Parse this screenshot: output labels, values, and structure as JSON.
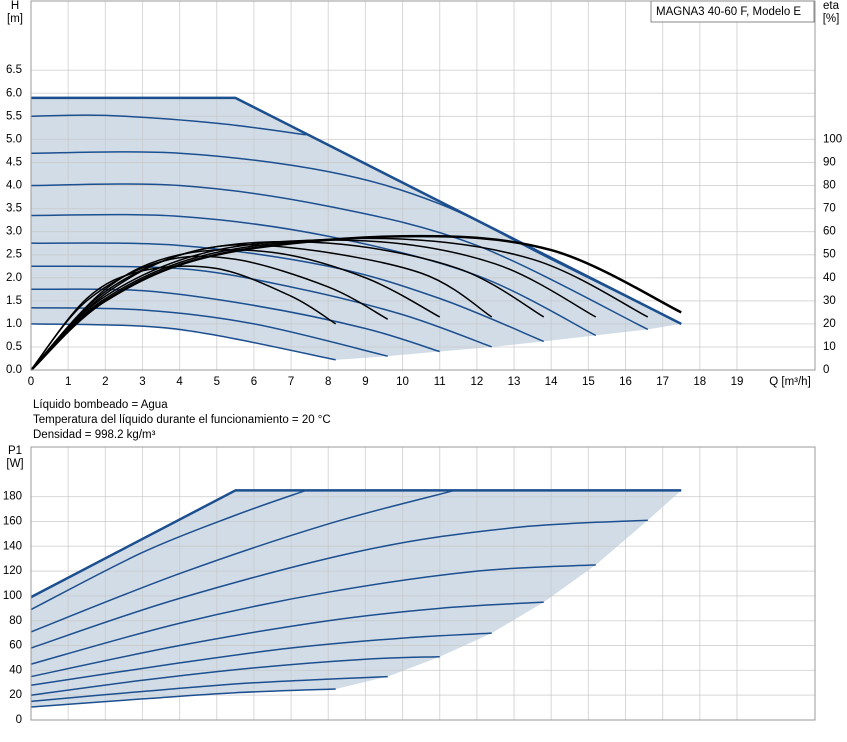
{
  "chart_data": [
    {
      "type": "line",
      "model": "MAGNA3 40-60 F, Modelo E",
      "ylabel": "H",
      "yunit": "[m]",
      "y2label": "eta",
      "y2unit": "[%]",
      "xlabel": "Q [m³/h]",
      "annotations": [
        "Líquido bombeado = Agua",
        "Temperatura del líquido durante el funcionamiento = 20 °C",
        "Densidad = 998.2 kg/m³"
      ],
      "xlim": [
        0,
        21.1
      ],
      "ylim": [
        0,
        8
      ],
      "y2lim": [
        0,
        160
      ],
      "xticks": [
        0,
        1,
        2,
        3,
        4,
        5,
        6,
        7,
        8,
        9,
        10,
        11,
        12,
        13,
        14,
        15,
        16,
        17,
        18,
        19
      ],
      "yticks": [
        {
          "value": 0,
          "label": "0.0"
        },
        {
          "value": 0.5,
          "label": "0.5"
        },
        {
          "value": 1,
          "label": "1.0"
        },
        {
          "value": 1.5,
          "label": "1.5"
        },
        {
          "value": 2,
          "label": "2.0"
        },
        {
          "value": 2.5,
          "label": "2.5"
        },
        {
          "value": 3,
          "label": "3.0"
        },
        {
          "value": 3.5,
          "label": "3.5"
        },
        {
          "value": 4,
          "label": "4.0"
        },
        {
          "value": 4.5,
          "label": "4.5"
        },
        {
          "value": 5,
          "label": "5.0"
        },
        {
          "value": 5.5,
          "label": "5.5"
        },
        {
          "value": 6,
          "label": "6.0"
        },
        {
          "value": 6.5,
          "label": "6.5"
        }
      ],
      "y2ticks": [
        0,
        10,
        20,
        30,
        40,
        50,
        60,
        70,
        80,
        90,
        100
      ],
      "grid": true,
      "fill_color": "#c9d6e3",
      "series": [
        {
          "color": "#1c4f8f",
          "smooth": false,
          "width": 2.5,
          "x": [
            0,
            5.5,
            17.5
          ],
          "values": [
            5.9,
            5.9,
            1.0
          ]
        },
        {
          "color": "#1c4f8f",
          "x": [
            0,
            2,
            5,
            7.4
          ],
          "values": [
            5.5,
            5.52,
            5.35,
            5.1
          ]
        },
        {
          "color": "#1c4f8f",
          "x": [
            0,
            4,
            8,
            11,
            14,
            17.5
          ],
          "values": [
            4.7,
            4.7,
            4.3,
            3.6,
            2.4,
            1.0
          ]
        },
        {
          "color": "#1c4f8f",
          "x": [
            0,
            4,
            8,
            12,
            16.6
          ],
          "values": [
            4.0,
            4.0,
            3.55,
            2.7,
            0.88
          ]
        },
        {
          "color": "#1c4f8f",
          "x": [
            0,
            4,
            8,
            12,
            15.2
          ],
          "values": [
            3.35,
            3.33,
            2.9,
            2.05,
            0.75
          ]
        },
        {
          "color": "#1c4f8f",
          "x": [
            0,
            4,
            8,
            11,
            13.8
          ],
          "values": [
            2.75,
            2.7,
            2.25,
            1.55,
            0.62
          ]
        },
        {
          "color": "#1c4f8f",
          "x": [
            0,
            4,
            7,
            10,
            12.4
          ],
          "values": [
            2.25,
            2.2,
            1.8,
            1.2,
            0.5
          ]
        },
        {
          "color": "#1c4f8f",
          "x": [
            0,
            3,
            6,
            9,
            11
          ],
          "values": [
            1.75,
            1.72,
            1.4,
            0.9,
            0.4
          ]
        },
        {
          "color": "#1c4f8f",
          "x": [
            0,
            3,
            6,
            9.6
          ],
          "values": [
            1.35,
            1.3,
            1.0,
            0.3
          ]
        },
        {
          "color": "#1c4f8f",
          "x": [
            0,
            3,
            5,
            8.2
          ],
          "values": [
            1.0,
            0.95,
            0.75,
            0.22
          ]
        },
        {
          "color": "#000000",
          "axis": "y2",
          "width": 2.5,
          "x": [
            0,
            2,
            5,
            10,
            14,
            17.5
          ],
          "values": [
            0,
            30,
            50,
            58,
            52,
            25
          ]
        },
        {
          "color": "#000000",
          "axis": "y2",
          "x": [
            0,
            2,
            5,
            9.5,
            13.5,
            16.6
          ],
          "values": [
            0,
            31,
            51,
            57,
            48,
            23
          ]
        },
        {
          "color": "#000000",
          "axis": "y2",
          "x": [
            0,
            2,
            5,
            9,
            12.5,
            15.2
          ],
          "values": [
            0,
            32,
            52,
            56,
            46,
            23
          ]
        },
        {
          "color": "#000000",
          "axis": "y2",
          "x": [
            0,
            2,
            4.5,
            8,
            11.5,
            13.8
          ],
          "values": [
            0,
            33,
            52,
            55,
            44,
            23
          ]
        },
        {
          "color": "#000000",
          "axis": "y2",
          "x": [
            0,
            2,
            4.5,
            7,
            10.5,
            12.4
          ],
          "values": [
            0,
            34,
            52,
            53,
            42,
            23
          ]
        },
        {
          "color": "#000000",
          "axis": "y2",
          "x": [
            0,
            2,
            4,
            6.5,
            9,
            11
          ],
          "values": [
            0,
            35,
            50,
            51,
            40,
            23
          ]
        },
        {
          "color": "#000000",
          "axis": "y2",
          "x": [
            0,
            1.5,
            3.5,
            5.5,
            8,
            9.6
          ],
          "values": [
            0,
            30,
            47,
            48,
            36,
            22
          ]
        },
        {
          "color": "#000000",
          "axis": "y2",
          "x": [
            0,
            1.5,
            3,
            5,
            7,
            8.2
          ],
          "values": [
            0,
            31,
            43,
            44,
            32,
            20
          ]
        }
      ]
    },
    {
      "type": "line",
      "ylabel": "P1",
      "yunit": "[W]",
      "xlim": [
        0,
        21.1
      ],
      "ylim": [
        0,
        220
      ],
      "yticks": [
        0,
        20,
        40,
        60,
        80,
        100,
        120,
        140,
        160,
        180
      ],
      "grid": true,
      "fill_color": "#c9d6e3",
      "series": [
        {
          "color": "#1c4f8f",
          "smooth": false,
          "width": 2.5,
          "x": [
            0,
            5.5,
            17.5
          ],
          "values": [
            99,
            185,
            185
          ]
        },
        {
          "color": "#1c4f8f",
          "x": [
            0,
            3,
            5.5,
            7.4
          ],
          "values": [
            89,
            135,
            165,
            185
          ]
        },
        {
          "color": "#1c4f8f",
          "x": [
            0,
            4,
            8,
            11.4
          ],
          "values": [
            71,
            118,
            158,
            185
          ]
        },
        {
          "color": "#1c4f8f",
          "x": [
            0,
            4,
            9,
            13,
            16.6
          ],
          "values": [
            58,
            98,
            137,
            155,
            161
          ]
        },
        {
          "color": "#1c4f8f",
          "x": [
            0,
            4,
            8,
            12,
            15.2
          ],
          "values": [
            45,
            78,
            103,
            120,
            125
          ]
        },
        {
          "color": "#1c4f8f",
          "x": [
            0,
            4,
            8,
            11,
            13.8
          ],
          "values": [
            35,
            60,
            80,
            90,
            95
          ]
        },
        {
          "color": "#1c4f8f",
          "x": [
            0,
            4,
            7,
            10,
            12.4
          ],
          "values": [
            28,
            46,
            58,
            66,
            70
          ]
        },
        {
          "color": "#1c4f8f",
          "x": [
            0,
            3,
            6,
            9,
            11
          ],
          "values": [
            20,
            32,
            42,
            49,
            51
          ]
        },
        {
          "color": "#1c4f8f",
          "x": [
            0,
            3,
            6,
            9.6
          ],
          "values": [
            15,
            23,
            30,
            35
          ]
        },
        {
          "color": "#1c4f8f",
          "x": [
            0,
            3,
            5.5,
            8.2
          ],
          "values": [
            10.5,
            17,
            22,
            25
          ]
        }
      ]
    }
  ]
}
